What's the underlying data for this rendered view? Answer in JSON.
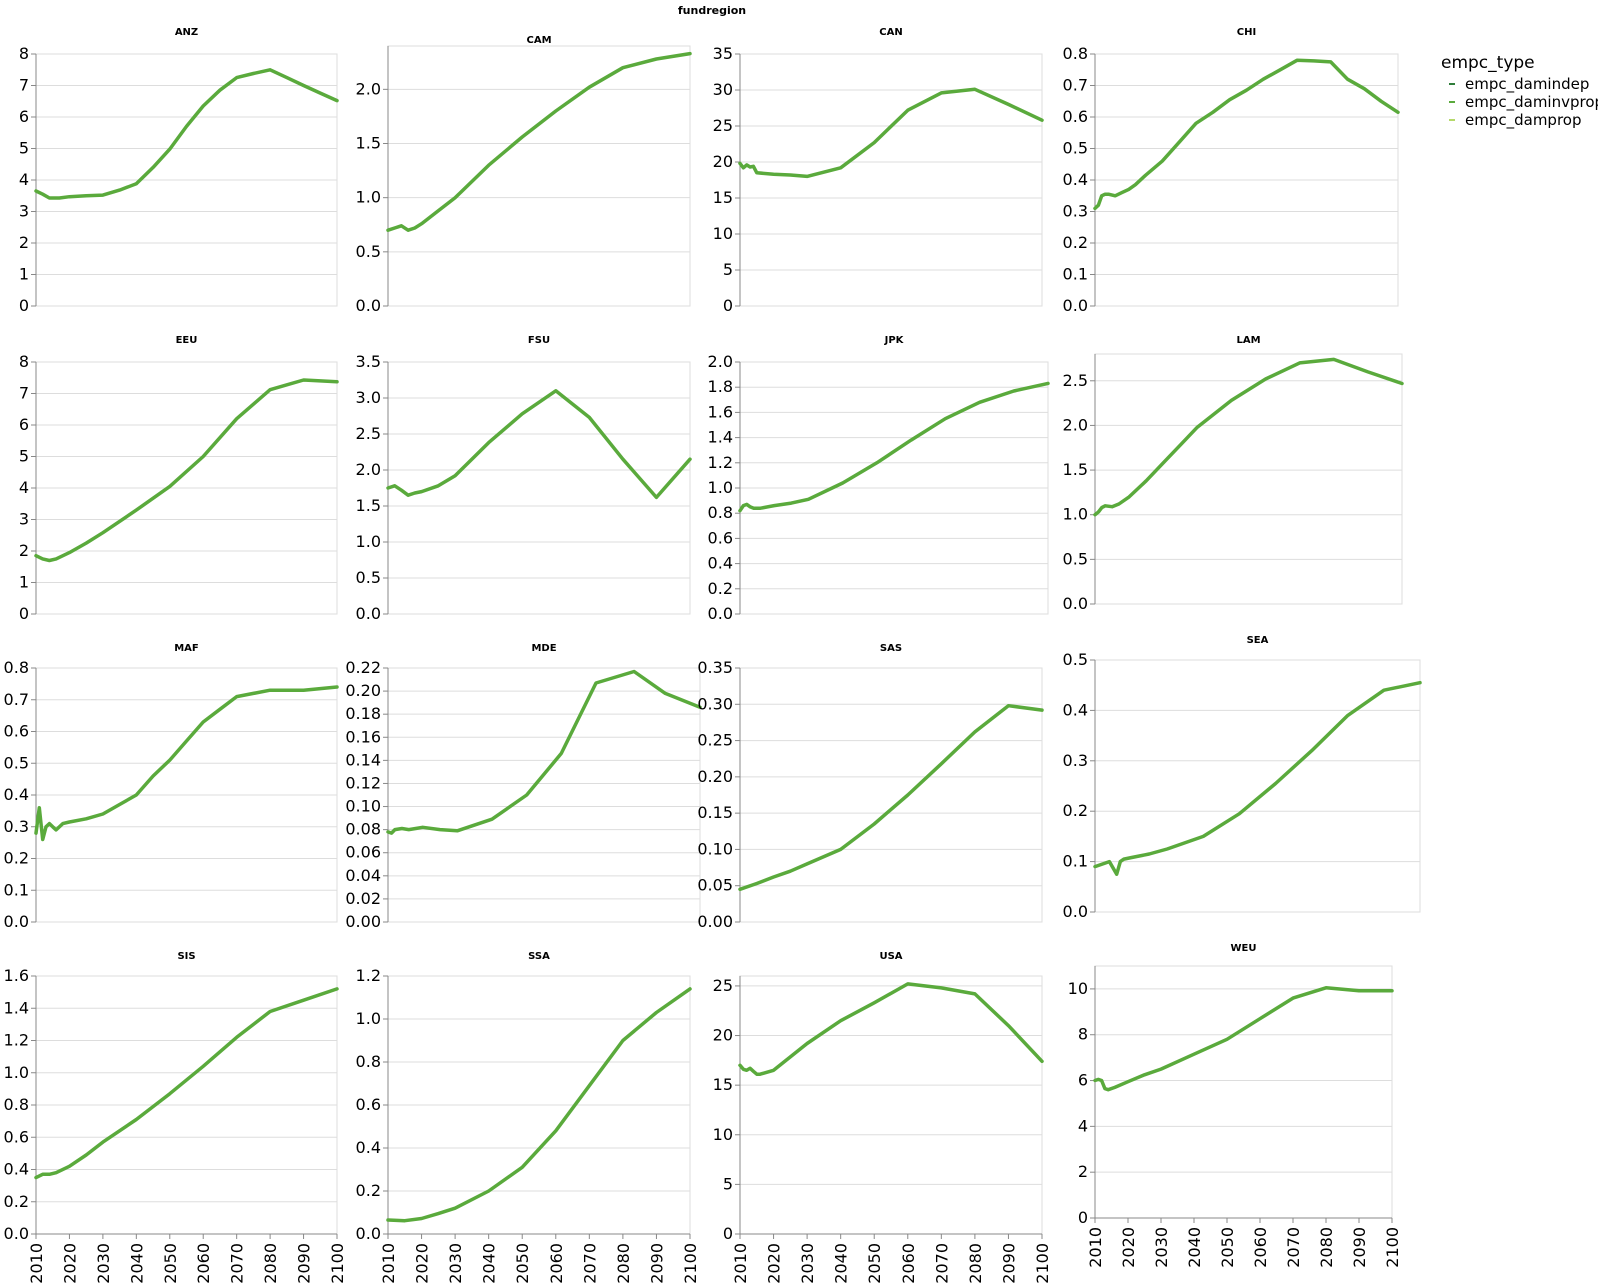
{
  "chart_data": {
    "type": "line",
    "title": "fundregion",
    "x_ticks": [
      2010,
      2020,
      2030,
      2040,
      2050,
      2060,
      2070,
      2080,
      2090,
      2100
    ],
    "xlim": [
      2010,
      2100
    ],
    "grid": true,
    "legend": {
      "title": "empc_type",
      "placement": "top-right",
      "entries": [
        {
          "label": "empc_damindep",
          "color": "#2f7d3a"
        },
        {
          "label": "empc_daminvprop",
          "color": "#5aaa3c"
        },
        {
          "label": "empc_damprop",
          "color": "#b5d96a"
        }
      ]
    },
    "line_color": "#5aaa3c",
    "panels": [
      {
        "region": "ANZ",
        "ylim": [
          0,
          8
        ],
        "yticks": [
          0,
          1,
          2,
          3,
          4,
          5,
          6,
          7,
          8
        ],
        "x": [
          2010,
          2012,
          2014,
          2017,
          2020,
          2025,
          2030,
          2035,
          2040,
          2045,
          2050,
          2055,
          2060,
          2065,
          2070,
          2075,
          2080,
          2085,
          2090,
          2095,
          2100
        ],
        "y": [
          3.65,
          3.55,
          3.43,
          3.43,
          3.47,
          3.5,
          3.52,
          3.68,
          3.88,
          4.4,
          4.98,
          5.7,
          6.35,
          6.85,
          7.25,
          7.38,
          7.5,
          7.25,
          7.0,
          6.76,
          6.52
        ]
      },
      {
        "region": "CAM",
        "ylim": [
          0,
          2.4
        ],
        "yticks": [
          0.0,
          0.5,
          1.0,
          1.5,
          2.0
        ],
        "x": [
          2010,
          2012,
          2014,
          2016,
          2018,
          2020,
          2025,
          2030,
          2040,
          2050,
          2060,
          2070,
          2080,
          2090,
          2100
        ],
        "y": [
          0.7,
          0.72,
          0.74,
          0.7,
          0.72,
          0.76,
          0.88,
          1.0,
          1.3,
          1.56,
          1.8,
          2.02,
          2.2,
          2.28,
          2.33
        ]
      },
      {
        "region": "CAN",
        "ylim": [
          0,
          35
        ],
        "yticks": [
          0,
          5,
          10,
          15,
          20,
          25,
          30,
          35
        ],
        "x": [
          2010,
          2011,
          2012,
          2013,
          2014,
          2015,
          2020,
          2025,
          2030,
          2040,
          2050,
          2060,
          2070,
          2080,
          2090,
          2100
        ],
        "y": [
          19.8,
          19.2,
          19.6,
          19.3,
          19.4,
          18.5,
          18.3,
          18.2,
          18.0,
          19.2,
          22.7,
          27.2,
          29.6,
          30.1,
          28.0,
          25.8
        ]
      },
      {
        "region": "CHI",
        "ylim": [
          0,
          0.8
        ],
        "yticks": [
          0.0,
          0.1,
          0.2,
          0.3,
          0.4,
          0.5,
          0.6,
          0.7,
          0.8
        ],
        "x": [
          2010,
          2011,
          2012,
          2013,
          2014,
          2016,
          2018,
          2020,
          2022,
          2025,
          2030,
          2035,
          2040,
          2045,
          2050,
          2055,
          2060,
          2065,
          2070,
          2075,
          2080,
          2085,
          2090,
          2095,
          2100
        ],
        "y": [
          0.31,
          0.32,
          0.35,
          0.355,
          0.355,
          0.35,
          0.36,
          0.37,
          0.385,
          0.415,
          0.46,
          0.52,
          0.58,
          0.615,
          0.655,
          0.685,
          0.72,
          0.75,
          0.78,
          0.778,
          0.775,
          0.72,
          0.69,
          0.65,
          0.615
        ]
      },
      {
        "region": "EEU",
        "ylim": [
          0,
          8
        ],
        "yticks": [
          0,
          1,
          2,
          3,
          4,
          5,
          6,
          7,
          8
        ],
        "x": [
          2010,
          2012,
          2014,
          2016,
          2020,
          2025,
          2030,
          2040,
          2050,
          2060,
          2070,
          2080,
          2090,
          2100
        ],
        "y": [
          1.85,
          1.75,
          1.7,
          1.75,
          1.95,
          2.25,
          2.58,
          3.3,
          4.05,
          5.0,
          6.2,
          7.12,
          7.43,
          7.37
        ]
      },
      {
        "region": "FSU",
        "ylim": [
          0,
          3.5
        ],
        "yticks": [
          0.0,
          0.5,
          1.0,
          1.5,
          2.0,
          2.5,
          3.0,
          3.5
        ],
        "x": [
          2010,
          2012,
          2014,
          2016,
          2018,
          2020,
          2025,
          2030,
          2040,
          2050,
          2060,
          2070,
          2080,
          2090,
          2100
        ],
        "y": [
          1.75,
          1.78,
          1.72,
          1.65,
          1.68,
          1.7,
          1.78,
          1.92,
          2.38,
          2.78,
          3.1,
          2.73,
          2.15,
          1.62,
          2.15
        ]
      },
      {
        "region": "JPK",
        "ylim": [
          0,
          2.0
        ],
        "yticks": [
          0.0,
          0.2,
          0.4,
          0.6,
          0.8,
          1.0,
          1.2,
          1.4,
          1.6,
          1.8,
          2.0
        ],
        "x": [
          2010,
          2011,
          2012,
          2013,
          2014,
          2016,
          2020,
          2025,
          2030,
          2040,
          2050,
          2060,
          2070,
          2080,
          2090,
          2100
        ],
        "y": [
          0.82,
          0.86,
          0.87,
          0.85,
          0.84,
          0.84,
          0.86,
          0.88,
          0.91,
          1.04,
          1.2,
          1.38,
          1.55,
          1.68,
          1.77,
          1.83
        ]
      },
      {
        "region": "LAM",
        "ylim": [
          0,
          2.8
        ],
        "yticks": [
          0.0,
          0.5,
          1.0,
          1.5,
          2.0,
          2.5
        ],
        "x": [
          2010,
          2011,
          2012,
          2013,
          2015,
          2017,
          2020,
          2025,
          2030,
          2035,
          2040,
          2050,
          2060,
          2070,
          2080,
          2090,
          2100
        ],
        "y": [
          1.0,
          1.03,
          1.08,
          1.1,
          1.09,
          1.12,
          1.2,
          1.38,
          1.58,
          1.78,
          1.98,
          2.28,
          2.52,
          2.7,
          2.74,
          2.6,
          2.47
        ]
      },
      {
        "region": "MAF",
        "ylim": [
          0,
          0.8
        ],
        "yticks": [
          0.0,
          0.1,
          0.2,
          0.3,
          0.4,
          0.5,
          0.6,
          0.7,
          0.8
        ],
        "x": [
          2010,
          2011,
          2012,
          2013,
          2014,
          2015,
          2016,
          2018,
          2020,
          2025,
          2030,
          2035,
          2040,
          2045,
          2050,
          2055,
          2060,
          2065,
          2070,
          2075,
          2080,
          2090,
          2100
        ],
        "y": [
          0.28,
          0.36,
          0.26,
          0.3,
          0.31,
          0.3,
          0.29,
          0.31,
          0.315,
          0.325,
          0.34,
          0.37,
          0.4,
          0.46,
          0.51,
          0.57,
          0.63,
          0.67,
          0.71,
          0.72,
          0.73,
          0.73,
          0.74
        ]
      },
      {
        "region": "MDE",
        "ylim": [
          0,
          0.22
        ],
        "yticks": [
          0.0,
          0.02,
          0.04,
          0.06,
          0.08,
          0.1,
          0.12,
          0.14,
          0.16,
          0.18,
          0.2,
          0.22
        ],
        "x": [
          2010,
          2011,
          2012,
          2014,
          2016,
          2018,
          2020,
          2025,
          2030,
          2040,
          2050,
          2060,
          2070,
          2081,
          2090,
          2100
        ],
        "y": [
          0.078,
          0.077,
          0.08,
          0.081,
          0.08,
          0.081,
          0.082,
          0.08,
          0.079,
          0.089,
          0.11,
          0.146,
          0.207,
          0.217,
          0.198,
          0.186
        ]
      },
      {
        "region": "SAS",
        "ylim": [
          0,
          0.35
        ],
        "yticks": [
          0.0,
          0.05,
          0.1,
          0.15,
          0.2,
          0.25,
          0.3,
          0.35
        ],
        "x": [
          2010,
          2015,
          2020,
          2025,
          2030,
          2040,
          2050,
          2060,
          2070,
          2080,
          2090,
          2100
        ],
        "y": [
          0.045,
          0.053,
          0.062,
          0.07,
          0.08,
          0.1,
          0.135,
          0.175,
          0.218,
          0.262,
          0.298,
          0.292
        ]
      },
      {
        "region": "SEA",
        "ylim": [
          0,
          0.5
        ],
        "yticks": [
          0.0,
          0.1,
          0.2,
          0.3,
          0.4,
          0.5
        ],
        "x": [
          2010,
          2012,
          2014,
          2016,
          2017,
          2018,
          2020,
          2025,
          2030,
          2040,
          2050,
          2060,
          2070,
          2080,
          2090,
          2100
        ],
        "y": [
          0.09,
          0.095,
          0.1,
          0.075,
          0.1,
          0.105,
          0.108,
          0.115,
          0.125,
          0.15,
          0.195,
          0.255,
          0.32,
          0.39,
          0.44,
          0.455
        ]
      },
      {
        "region": "SIS",
        "ylim": [
          0,
          1.6
        ],
        "yticks": [
          0.0,
          0.2,
          0.4,
          0.6,
          0.8,
          1.0,
          1.2,
          1.4,
          1.6
        ],
        "x": [
          2010,
          2012,
          2014,
          2016,
          2020,
          2025,
          2030,
          2040,
          2050,
          2060,
          2070,
          2080,
          2090,
          2100
        ],
        "y": [
          0.35,
          0.37,
          0.37,
          0.38,
          0.42,
          0.49,
          0.57,
          0.71,
          0.87,
          1.04,
          1.22,
          1.38,
          1.45,
          1.52
        ]
      },
      {
        "region": "SSA",
        "ylim": [
          0,
          1.2
        ],
        "yticks": [
          0.0,
          0.2,
          0.4,
          0.6,
          0.8,
          1.0,
          1.2
        ],
        "x": [
          2010,
          2015,
          2020,
          2025,
          2030,
          2040,
          2050,
          2060,
          2070,
          2080,
          2090,
          2100
        ],
        "y": [
          0.065,
          0.062,
          0.072,
          0.095,
          0.12,
          0.2,
          0.31,
          0.48,
          0.69,
          0.9,
          1.03,
          1.14
        ]
      },
      {
        "region": "USA",
        "ylim": [
          0,
          26
        ],
        "yticks": [
          0,
          5,
          10,
          15,
          20,
          25
        ],
        "x": [
          2010,
          2011,
          2012,
          2013,
          2014,
          2015,
          2016,
          2020,
          2030,
          2040,
          2050,
          2060,
          2070,
          2080,
          2090,
          2100
        ],
        "y": [
          17.0,
          16.6,
          16.5,
          16.7,
          16.4,
          16.1,
          16.1,
          16.5,
          19.2,
          21.5,
          23.3,
          25.2,
          24.8,
          24.2,
          21.0,
          17.4
        ]
      },
      {
        "region": "WEU",
        "ylim": [
          0,
          11
        ],
        "yticks": [
          0,
          2,
          4,
          6,
          8,
          10
        ],
        "x": [
          2010,
          2011,
          2012,
          2013,
          2014,
          2016,
          2020,
          2025,
          2030,
          2040,
          2050,
          2060,
          2070,
          2080,
          2090,
          2100
        ],
        "y": [
          6.0,
          6.05,
          6.0,
          5.65,
          5.6,
          5.7,
          5.95,
          6.25,
          6.5,
          7.15,
          7.8,
          8.7,
          9.6,
          10.05,
          9.92,
          9.92
        ]
      }
    ]
  }
}
